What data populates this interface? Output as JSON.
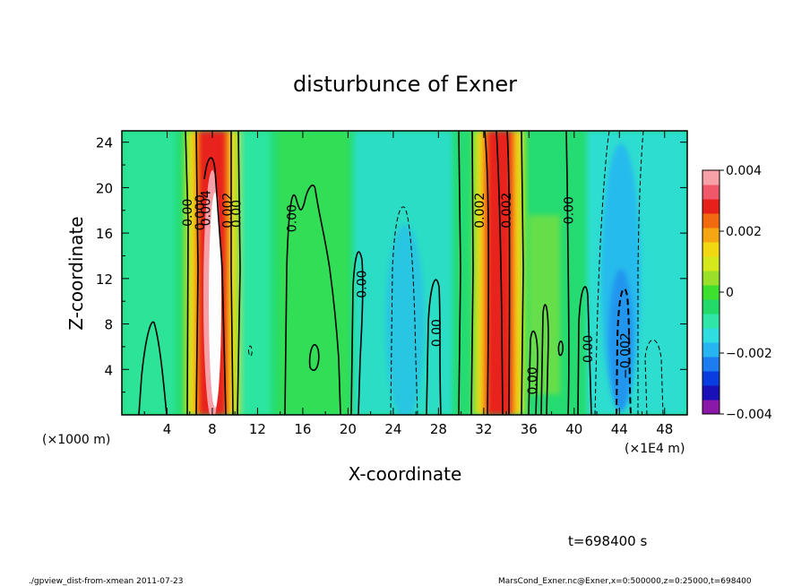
{
  "chart_data": {
    "type": "heatmap",
    "title": "disturbunce of Exner",
    "xlabel": "X-coordinate",
    "ylabel": "Z-coordinate",
    "x_unit_left": "(×1000 m)",
    "x_unit_right": "(×1E4 m)",
    "xlim": [
      0,
      50
    ],
    "ylim": [
      0,
      25
    ],
    "x_ticks": [
      4,
      8,
      12,
      16,
      20,
      24,
      28,
      32,
      36,
      40,
      44,
      48
    ],
    "y_ticks": [
      4,
      8,
      12,
      16,
      20,
      24
    ],
    "colorbar": {
      "range": [
        -0.004,
        0.004
      ],
      "tick_values": [
        0.004,
        0.002,
        0,
        -0.002,
        -0.004
      ],
      "tick_labels": [
        "0.004",
        "0.002",
        "0",
        "−0.002",
        "−0.004"
      ],
      "colors": [
        "#8a18a8",
        "#1a10b8",
        "#0a3de0",
        "#1c7cf0",
        "#27b5f2",
        "#2fdde0",
        "#2fe6a8",
        "#22d96a",
        "#3ee030",
        "#9ae02a",
        "#d4e81c",
        "#f2d812",
        "#f5a612",
        "#f26a10",
        "#e8201a",
        "#f0586a",
        "#f6a0a8"
      ]
    },
    "contour_labels": [
      {
        "text": "0.00",
        "x": 6.2,
        "z": 17.8
      },
      {
        "text": "0.000",
        "x": 7.3,
        "z": 17.8
      },
      {
        "text": "0.004",
        "x": 7.8,
        "z": 18.2
      },
      {
        "text": "0.002",
        "x": 9.7,
        "z": 18.0
      },
      {
        "text": "0.00",
        "x": 10.5,
        "z": 17.7
      },
      {
        "text": "0.00",
        "x": 15.4,
        "z": 17.3
      },
      {
        "text": "0.00",
        "x": 21.6,
        "z": 11.5
      },
      {
        "text": "0.00",
        "x": 28.2,
        "z": 7.2
      },
      {
        "text": "0.002",
        "x": 32.0,
        "z": 18.0
      },
      {
        "text": "0.002",
        "x": 34.4,
        "z": 18.0
      },
      {
        "text": "0.00",
        "x": 36.7,
        "z": 3.0
      },
      {
        "text": "0.00",
        "x": 39.9,
        "z": 18.0
      },
      {
        "text": "0.00",
        "x": 41.6,
        "z": 5.8
      },
      {
        "text": "−0.002",
        "x": 44.9,
        "z": 5.2
      }
    ],
    "time_label": "t=698400 s"
  },
  "footer": {
    "left": "./gpview_dist-from-xmean  2011-07-23",
    "right": "MarsCond_Exner.nc@Exner,x=0:500000,z=0:25000,t=698400"
  }
}
